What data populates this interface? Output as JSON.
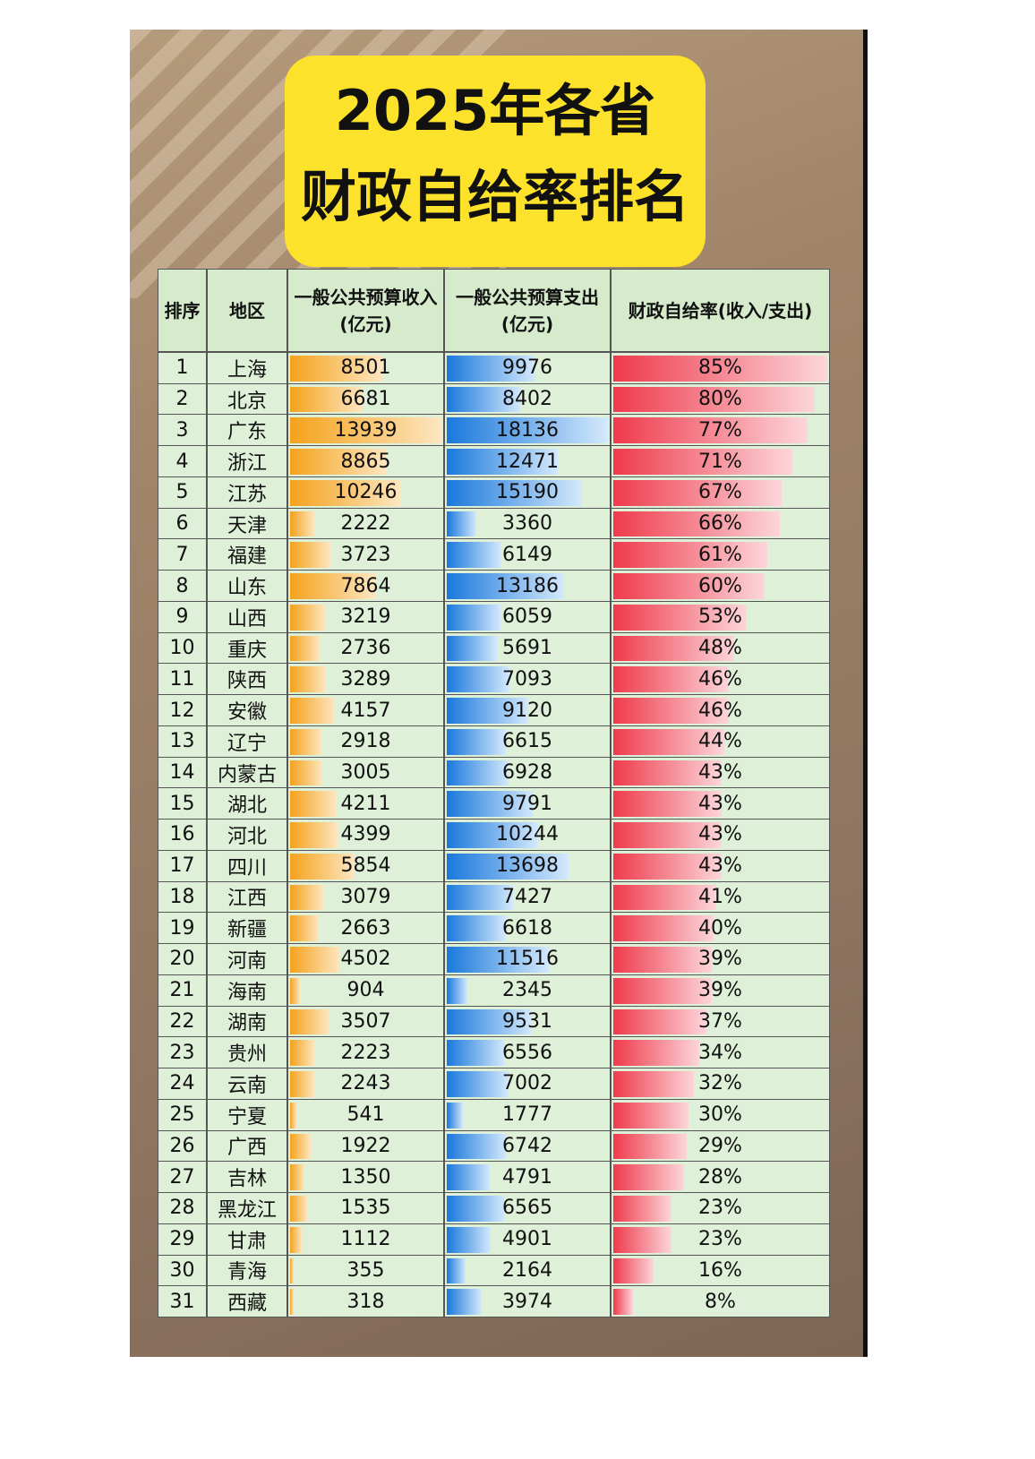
{
  "title": {
    "line1": "2025年各省",
    "line2": "财政自给率排名"
  },
  "table": {
    "headers": [
      "排序",
      "地区",
      "一般公共预算收入(亿元)",
      "一般公共预算支出(亿元)",
      "财政自给率(收入/支出)"
    ],
    "rows": [
      [
        1,
        "上海",
        8501,
        9976,
        {
          "value": 85,
          "label": "85%"
        }
      ],
      [
        2,
        "北京",
        6681,
        8402,
        {
          "value": 80,
          "label": "80%"
        }
      ],
      [
        3,
        "广东",
        13939,
        18136,
        {
          "value": 77,
          "label": "77%"
        }
      ],
      [
        4,
        "浙江",
        8865,
        12471,
        {
          "value": 71,
          "label": "71%"
        }
      ],
      [
        5,
        "江苏",
        10246,
        15190,
        {
          "value": 67,
          "label": "67%"
        }
      ],
      [
        6,
        "天津",
        2222,
        3360,
        {
          "value": 66,
          "label": "66%"
        }
      ],
      [
        7,
        "福建",
        3723,
        6149,
        {
          "value": 61,
          "label": "61%"
        }
      ],
      [
        8,
        "山东",
        7864,
        13186,
        {
          "value": 60,
          "label": "60%"
        }
      ],
      [
        9,
        "山西",
        3219,
        6059,
        {
          "value": 53,
          "label": "53%"
        }
      ],
      [
        10,
        "重庆",
        2736,
        5691,
        {
          "value": 48,
          "label": "48%"
        }
      ],
      [
        11,
        "陕西",
        3289,
        7093,
        {
          "value": 46,
          "label": "46%"
        }
      ],
      [
        12,
        "安徽",
        4157,
        9120,
        {
          "value": 46,
          "label": "46%"
        }
      ],
      [
        13,
        "辽宁",
        2918,
        6615,
        {
          "value": 44,
          "label": "44%"
        }
      ],
      [
        14,
        "内蒙古",
        3005,
        6928,
        {
          "value": 43,
          "label": "43%"
        }
      ],
      [
        15,
        "湖北",
        4211,
        9791,
        {
          "value": 43,
          "label": "43%"
        }
      ],
      [
        16,
        "河北",
        4399,
        10244,
        {
          "value": 43,
          "label": "43%"
        }
      ],
      [
        17,
        "四川",
        5854,
        13698,
        {
          "value": 43,
          "label": "43%"
        }
      ],
      [
        18,
        "江西",
        3079,
        7427,
        {
          "value": 41,
          "label": "41%"
        }
      ],
      [
        19,
        "新疆",
        2663,
        6618,
        {
          "value": 40,
          "label": "40%"
        }
      ],
      [
        20,
        "河南",
        4502,
        11516,
        {
          "value": 39,
          "label": "39%"
        }
      ],
      [
        21,
        "海南",
        904,
        2345,
        {
          "value": 39,
          "label": "39%"
        }
      ],
      [
        22,
        "湖南",
        3507,
        9531,
        {
          "value": 37,
          "label": "37%"
        }
      ],
      [
        23,
        "贵州",
        2223,
        6556,
        {
          "value": 34,
          "label": "34%"
        }
      ],
      [
        24,
        "云南",
        2243,
        7002,
        {
          "value": 32,
          "label": "32%"
        }
      ],
      [
        25,
        "宁夏",
        541,
        1777,
        {
          "value": 30,
          "label": "30%"
        }
      ],
      [
        26,
        "广西",
        1922,
        6742,
        {
          "value": 29,
          "label": "29%"
        }
      ],
      [
        27,
        "吉林",
        1350,
        4791,
        {
          "value": 28,
          "label": "28%"
        }
      ],
      [
        28,
        "黑龙江",
        1535,
        6565,
        {
          "value": 23,
          "label": "23%"
        }
      ],
      [
        29,
        "甘肃",
        1112,
        4901,
        {
          "value": 23,
          "label": "23%"
        }
      ],
      [
        30,
        "青海",
        355,
        2164,
        {
          "value": 16,
          "label": "16%"
        }
      ],
      [
        31,
        "西藏",
        318,
        3974,
        {
          "value": 8,
          "label": "8%"
        }
      ]
    ]
  }
}
